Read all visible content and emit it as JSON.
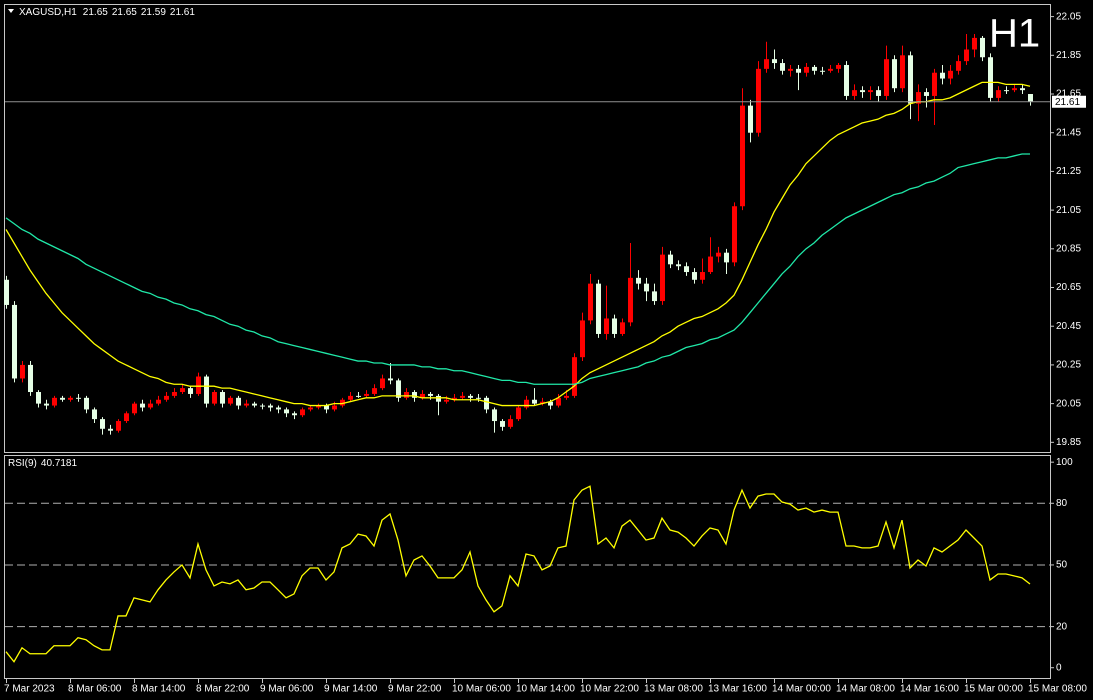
{
  "chart_data": [
    {
      "type": "candlestick",
      "title": "XAGUSD,H1",
      "annotation": "H1",
      "annotation_color": "#ff2020",
      "categories": [
        "7 Mar 2023",
        null,
        null,
        null,
        null,
        null,
        null,
        null,
        "8 Mar 06:00",
        null,
        null,
        null,
        null,
        null,
        null,
        null,
        "8 Mar 14:00",
        null,
        null,
        null,
        null,
        null,
        null,
        null,
        "8 Mar 22:00",
        null,
        null,
        null,
        null,
        null,
        null,
        null,
        "9 Mar 06:00",
        null,
        null,
        null,
        null,
        null,
        null,
        null,
        "9 Mar 14:00",
        null,
        null,
        null,
        null,
        null,
        null,
        null,
        "9 Mar 22:00",
        null,
        null,
        null,
        null,
        null,
        null,
        null,
        "10 Mar 06:00",
        null,
        null,
        null,
        null,
        null,
        null,
        null,
        "10 Mar 14:00",
        null,
        null,
        null,
        null,
        null,
        null,
        null,
        "10 Mar 22:00",
        null,
        null,
        null,
        null,
        null,
        null,
        null,
        "13 Mar 08:00",
        null,
        null,
        null,
        null,
        null,
        null,
        null,
        "13 Mar 16:00",
        null,
        null,
        null,
        null,
        null,
        null,
        null,
        "14 Mar 00:00",
        null,
        null,
        null,
        null,
        null,
        null,
        null,
        "14 Mar 08:00",
        null,
        null,
        null,
        null,
        null,
        null,
        null,
        "14 Mar 16:00",
        null,
        null,
        null,
        null,
        null,
        null,
        null,
        "15 Mar 00:00",
        null,
        null,
        null,
        null,
        null,
        null,
        null,
        "15 Mar 08:00"
      ],
      "open": [
        20.69,
        20.56,
        20.18,
        20.25,
        20.11,
        20.05,
        20.04,
        20.08,
        20.07,
        20.08,
        20.08,
        20.02,
        19.97,
        19.92,
        19.91,
        19.96,
        20.0,
        20.05,
        20.03,
        20.05,
        20.07,
        20.09,
        20.11,
        20.13,
        20.1,
        20.19,
        20.05,
        20.11,
        20.05,
        20.08,
        20.04,
        20.05,
        20.04,
        20.04,
        20.03,
        20.02,
        20.0,
        19.99,
        20.02,
        20.03,
        20.04,
        20.02,
        20.04,
        20.07,
        20.09,
        20.09,
        20.1,
        20.13,
        20.18,
        20.17,
        20.08,
        20.11,
        20.08,
        20.1,
        20.09,
        20.06,
        20.07,
        20.08,
        20.09,
        20.08,
        20.08,
        20.02,
        19.96,
        19.93,
        19.97,
        20.03,
        20.07,
        20.05,
        20.06,
        20.04,
        20.08,
        20.09,
        20.29,
        20.48,
        20.67,
        20.41,
        20.49,
        20.41,
        20.47,
        20.7,
        20.67,
        20.63,
        20.58,
        20.82,
        20.77,
        20.76,
        20.73,
        20.69,
        20.73,
        20.81,
        20.83,
        20.78,
        21.07,
        21.59,
        21.45,
        21.78,
        21.83,
        21.81,
        21.77,
        21.78,
        21.76,
        21.79,
        21.77,
        21.77,
        21.78,
        21.8,
        21.64,
        21.67,
        21.66,
        21.67,
        21.64,
        21.83,
        21.68,
        21.85,
        21.6,
        21.66,
        21.64,
        21.76,
        21.73,
        21.77,
        21.82,
        21.88,
        21.94,
        21.84,
        21.63,
        21.67,
        21.67,
        21.68,
        21.65
      ],
      "high": [
        20.71,
        20.58,
        20.27,
        20.27,
        20.12,
        20.07,
        20.09,
        20.09,
        20.09,
        20.1,
        20.09,
        20.03,
        19.98,
        19.94,
        19.97,
        20.01,
        20.06,
        20.07,
        20.07,
        20.09,
        20.11,
        20.13,
        20.15,
        20.14,
        20.21,
        20.2,
        20.12,
        20.12,
        20.09,
        20.09,
        20.07,
        20.06,
        20.05,
        20.05,
        20.04,
        20.03,
        20.01,
        20.03,
        20.04,
        20.05,
        20.05,
        20.06,
        20.08,
        20.11,
        20.11,
        20.12,
        20.15,
        20.2,
        20.26,
        20.18,
        20.13,
        20.12,
        20.12,
        20.11,
        20.1,
        20.09,
        20.1,
        20.11,
        20.1,
        20.1,
        20.09,
        20.03,
        19.97,
        19.99,
        20.04,
        20.09,
        20.13,
        20.08,
        20.07,
        20.1,
        20.12,
        20.31,
        20.52,
        20.72,
        20.69,
        20.66,
        20.51,
        20.49,
        20.88,
        20.74,
        20.7,
        20.67,
        20.86,
        20.84,
        20.79,
        20.78,
        20.75,
        20.8,
        20.91,
        20.86,
        20.85,
        21.09,
        21.68,
        21.62,
        21.82,
        21.92,
        21.88,
        21.83,
        21.8,
        21.8,
        21.81,
        21.8,
        21.79,
        21.8,
        21.81,
        21.82,
        21.7,
        21.69,
        21.69,
        21.69,
        21.9,
        21.85,
        21.9,
        21.87,
        21.7,
        21.68,
        21.78,
        21.8,
        21.8,
        21.85,
        21.96,
        21.96,
        21.95,
        21.86,
        21.69,
        21.69,
        21.7,
        21.7,
        21.65
      ],
      "low": [
        20.54,
        20.16,
        20.16,
        20.09,
        20.03,
        20.02,
        20.03,
        20.06,
        20.06,
        20.06,
        20.0,
        19.95,
        19.89,
        19.89,
        19.9,
        19.95,
        19.99,
        20.01,
        20.02,
        20.04,
        20.06,
        20.08,
        20.1,
        20.08,
        20.09,
        20.03,
        20.04,
        20.03,
        20.04,
        20.02,
        20.03,
        20.03,
        20.02,
        20.01,
        20.0,
        19.98,
        19.97,
        19.98,
        20.01,
        20.02,
        20.0,
        20.01,
        20.03,
        20.06,
        20.08,
        20.08,
        20.09,
        20.12,
        20.15,
        20.06,
        20.07,
        20.06,
        20.07,
        20.07,
        19.99,
        20.05,
        20.06,
        20.07,
        20.06,
        20.06,
        20.0,
        19.9,
        19.91,
        19.92,
        19.96,
        20.02,
        20.04,
        20.04,
        20.02,
        20.03,
        20.07,
        20.08,
        20.27,
        20.46,
        20.39,
        20.38,
        20.39,
        20.4,
        20.45,
        20.64,
        20.58,
        20.56,
        20.56,
        20.75,
        20.74,
        20.71,
        20.67,
        20.67,
        20.72,
        20.78,
        20.72,
        20.76,
        21.05,
        21.4,
        21.43,
        21.76,
        21.78,
        21.75,
        21.74,
        21.67,
        21.74,
        21.75,
        21.75,
        21.76,
        21.76,
        21.62,
        21.62,
        21.63,
        21.62,
        21.61,
        21.62,
        21.66,
        21.66,
        21.52,
        21.51,
        21.58,
        21.49,
        21.7,
        21.7,
        21.75,
        21.8,
        21.84,
        21.82,
        21.61,
        21.61,
        21.65,
        21.66,
        21.65,
        21.59
      ],
      "close": [
        20.56,
        20.18,
        20.25,
        20.11,
        20.05,
        20.04,
        20.08,
        20.07,
        20.08,
        20.08,
        20.02,
        19.97,
        19.92,
        19.91,
        19.96,
        20.0,
        20.05,
        20.03,
        20.05,
        20.07,
        20.09,
        20.11,
        20.13,
        20.1,
        20.19,
        20.05,
        20.11,
        20.05,
        20.08,
        20.04,
        20.05,
        20.04,
        20.04,
        20.03,
        20.02,
        20.0,
        19.99,
        20.02,
        20.03,
        20.04,
        20.02,
        20.04,
        20.07,
        20.09,
        20.09,
        20.1,
        20.13,
        20.18,
        20.17,
        20.08,
        20.11,
        20.08,
        20.1,
        20.09,
        20.06,
        20.07,
        20.08,
        20.09,
        20.08,
        20.08,
        20.02,
        19.96,
        19.93,
        19.97,
        20.03,
        20.07,
        20.05,
        20.06,
        20.04,
        20.08,
        20.09,
        20.29,
        20.48,
        20.67,
        20.41,
        20.49,
        20.41,
        20.47,
        20.7,
        20.67,
        20.63,
        20.58,
        20.82,
        20.77,
        20.76,
        20.73,
        20.69,
        20.73,
        20.81,
        20.83,
        20.78,
        21.07,
        21.59,
        21.45,
        21.78,
        21.83,
        21.81,
        21.77,
        21.78,
        21.76,
        21.79,
        21.77,
        21.77,
        21.78,
        21.8,
        21.64,
        21.67,
        21.66,
        21.67,
        21.64,
        21.83,
        21.68,
        21.85,
        21.6,
        21.66,
        21.64,
        21.76,
        21.73,
        21.77,
        21.82,
        21.88,
        21.94,
        21.84,
        21.63,
        21.67,
        21.67,
        21.68,
        21.67,
        21.61
      ],
      "up_color": "#ff0000",
      "down_color": "#e6ffe6",
      "series": [
        {
          "color": "#ffff00",
          "values": [
            20.95,
            20.88,
            20.81,
            20.74,
            20.68,
            20.62,
            20.57,
            20.52,
            20.48,
            20.44,
            20.4,
            20.36,
            20.33,
            20.3,
            20.27,
            20.25,
            20.23,
            20.21,
            20.19,
            20.18,
            20.16,
            20.15,
            20.15,
            20.14,
            20.14,
            20.14,
            20.14,
            20.13,
            20.13,
            20.12,
            20.11,
            20.1,
            20.09,
            20.08,
            20.07,
            20.06,
            20.05,
            20.05,
            20.04,
            20.04,
            20.04,
            20.05,
            20.05,
            20.06,
            20.07,
            20.08,
            20.08,
            20.09,
            20.09,
            20.09,
            20.09,
            20.09,
            20.08,
            20.08,
            20.08,
            20.08,
            20.07,
            20.07,
            20.07,
            20.07,
            20.06,
            20.05,
            20.04,
            20.04,
            20.04,
            20.04,
            20.04,
            20.05,
            20.06,
            20.08,
            20.11,
            20.14,
            20.18,
            20.21,
            20.23,
            20.25,
            20.27,
            20.29,
            20.31,
            20.33,
            20.35,
            20.37,
            20.4,
            20.42,
            20.45,
            20.47,
            20.49,
            20.5,
            20.52,
            20.54,
            20.57,
            20.61,
            20.69,
            20.78,
            20.87,
            20.95,
            21.04,
            21.11,
            21.18,
            21.23,
            21.29,
            21.33,
            21.37,
            21.41,
            21.44,
            21.46,
            21.48,
            21.5,
            21.51,
            21.52,
            21.54,
            21.55,
            21.57,
            21.6,
            21.61,
            21.61,
            21.62,
            21.62,
            21.63,
            21.65,
            21.67,
            21.69,
            21.71,
            21.71,
            21.71,
            21.7,
            21.7,
            21.7,
            21.69
          ]
        },
        {
          "color": "#20e8a8",
          "values": [
            21.01,
            20.98,
            20.95,
            20.93,
            20.9,
            20.88,
            20.86,
            20.84,
            20.82,
            20.8,
            20.77,
            20.75,
            20.73,
            20.71,
            20.69,
            20.67,
            20.65,
            20.63,
            20.62,
            20.6,
            20.59,
            20.57,
            20.56,
            20.54,
            20.53,
            20.51,
            20.5,
            20.48,
            20.46,
            20.45,
            20.43,
            20.42,
            20.4,
            20.39,
            20.37,
            20.36,
            20.35,
            20.34,
            20.33,
            20.32,
            20.31,
            20.3,
            20.29,
            20.28,
            20.27,
            20.27,
            20.26,
            20.26,
            20.25,
            20.25,
            20.25,
            20.25,
            20.24,
            20.24,
            20.23,
            20.23,
            20.22,
            20.22,
            20.21,
            20.2,
            20.19,
            20.18,
            20.17,
            20.17,
            20.16,
            20.16,
            20.15,
            20.15,
            20.15,
            20.15,
            20.15,
            20.15,
            20.16,
            20.18,
            20.19,
            20.2,
            20.21,
            20.22,
            20.23,
            20.24,
            20.26,
            20.27,
            20.29,
            20.3,
            20.32,
            20.34,
            20.35,
            20.36,
            20.38,
            20.39,
            20.41,
            20.43,
            20.47,
            20.52,
            20.57,
            20.62,
            20.67,
            20.72,
            20.76,
            20.81,
            20.85,
            20.88,
            20.92,
            20.95,
            20.98,
            21.01,
            21.03,
            21.05,
            21.07,
            21.09,
            21.11,
            21.13,
            21.14,
            21.16,
            21.17,
            21.19,
            21.2,
            21.22,
            21.24,
            21.27,
            21.28,
            21.29,
            21.3,
            21.31,
            21.32,
            21.32,
            21.33,
            21.34,
            21.34
          ]
        }
      ],
      "ylim": [
        19.8,
        22.11
      ],
      "yticks": [
        22.05,
        21.85,
        21.65,
        21.45,
        21.25,
        21.05,
        20.85,
        20.65,
        20.45,
        20.25,
        20.05,
        19.85
      ],
      "grid": false,
      "price_line": true
    },
    {
      "type": "line",
      "title": "RSI(9)",
      "color": "#ffff00",
      "values": [
        7.8,
        2.9,
        9.7,
        6.8,
        6.8,
        6.8,
        10.7,
        10.7,
        10.7,
        14.6,
        13.6,
        10.7,
        8.7,
        8.7,
        25.2,
        25.2,
        34.0,
        33.0,
        32.0,
        37.9,
        42.7,
        46.6,
        50.0,
        43.7,
        60.2,
        47.6,
        39.8,
        41.7,
        40.8,
        42.7,
        37.9,
        38.8,
        41.7,
        41.7,
        37.9,
        34.0,
        35.9,
        44.7,
        48.5,
        48.5,
        42.7,
        46.6,
        58.3,
        60.2,
        65.0,
        64.1,
        59.2,
        71.8,
        74.8,
        62.1,
        44.7,
        52.4,
        54.4,
        49.5,
        43.7,
        43.7,
        43.7,
        47.6,
        56.3,
        39.8,
        33.0,
        27.2,
        30.1,
        44.7,
        39.8,
        55.3,
        54.4,
        47.6,
        49.5,
        58.3,
        59.2,
        81.6,
        86.4,
        88.3,
        60.2,
        63.1,
        58.3,
        68.9,
        71.8,
        67.0,
        62.1,
        63.1,
        72.8,
        67.0,
        66.0,
        63.1,
        59.2,
        64.1,
        68.0,
        67.0,
        60.2,
        76.7,
        86.4,
        77.7,
        83.5,
        84.5,
        84.5,
        80.6,
        79.6,
        76.7,
        77.7,
        75.7,
        76.7,
        75.7,
        75.7,
        59.2,
        59.2,
        58.3,
        58.3,
        59.2,
        70.9,
        58.3,
        71.8,
        48.5,
        52.4,
        49.5,
        58.3,
        56.3,
        59.2,
        62.1,
        67.0,
        63.1,
        59.2,
        42.7,
        45.6,
        45.6,
        44.7,
        43.7,
        40.7181
      ],
      "ylim": [
        -5,
        103
      ],
      "yticks": [
        100,
        80,
        50,
        20,
        0
      ],
      "levels": [
        80,
        50,
        20
      ]
    }
  ]
}
